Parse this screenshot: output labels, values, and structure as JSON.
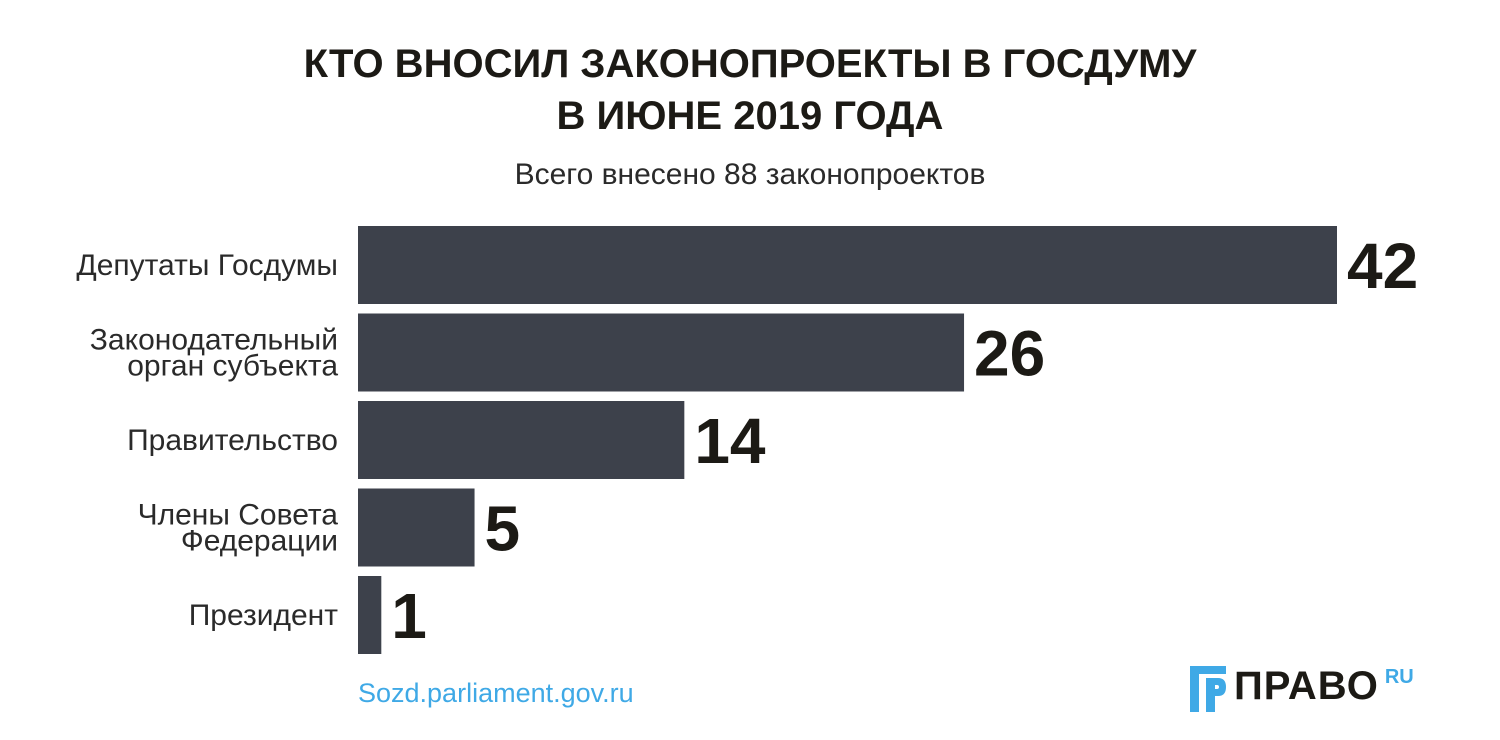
{
  "chart_data": {
    "type": "bar",
    "orientation": "horizontal",
    "title": [
      "КТО ВНОСИЛ ЗАКОНОПРОЕКТЫ В ГОСДУМУ",
      "В ИЮНЕ 2019 ГОДА"
    ],
    "subtitle": "Всего внесено 88 законопроектов",
    "categories": [
      [
        "Депутаты Госдумы"
      ],
      [
        "Законодательный",
        "орган субъекта"
      ],
      [
        "Правительство"
      ],
      [
        "Члены Совета",
        "Федерации"
      ],
      [
        "Президент"
      ]
    ],
    "values": [
      42,
      26,
      14,
      5,
      1
    ],
    "xlim": [
      0,
      42
    ],
    "bar_color": "#3d414b",
    "grid": false
  },
  "footer": {
    "source": "Sozd.parliament.gov.ru",
    "logo_text": "ПРАВО",
    "logo_sup": "RU"
  },
  "colors": {
    "title": "#1c1a15",
    "source": "#3fa9e6",
    "logo_accent": "#3fa9e6"
  }
}
